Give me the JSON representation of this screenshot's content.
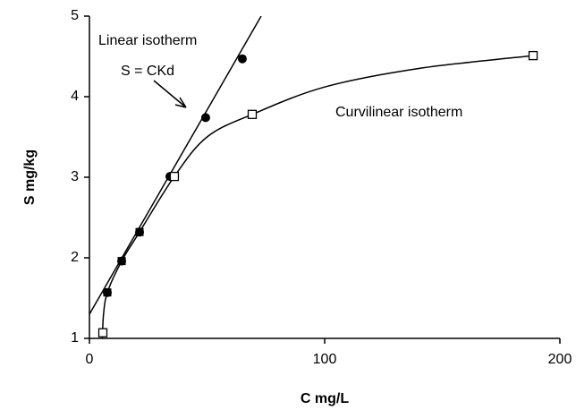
{
  "chart_data": {
    "type": "scatter",
    "xlabel": "C mg/L",
    "ylabel": "S mg/kg",
    "xlim": [
      0,
      200
    ],
    "ylim": [
      1,
      5
    ],
    "xticks": [
      0,
      100,
      200
    ],
    "yticks": [
      1,
      2,
      3,
      4,
      5
    ],
    "grid": false,
    "annotations": [
      "Linear isotherm",
      "S = CKd",
      "Curvilinear isotherm"
    ],
    "series": [
      {
        "draw": "line",
        "color": "#000000",
        "x": [
          0,
          73
        ],
        "values": [
          1.3,
          5
        ]
      },
      {
        "draw": "smooth",
        "color": "#000000",
        "x": [
          5.5,
          6,
          7.6,
          13.7,
          21.3,
          36.1,
          50,
          69.2,
          100,
          140,
          188.6
        ],
        "values": [
          1.0,
          1.3,
          1.57,
          1.96,
          2.32,
          3.01,
          3.5,
          3.78,
          4.12,
          4.35,
          4.51
        ]
      },
      {
        "draw": "circle",
        "color": "#000000",
        "x": [
          7.6,
          13.7,
          21.3,
          34.2,
          49.4,
          65
        ],
        "values": [
          1.57,
          1.96,
          2.32,
          3.01,
          3.74,
          4.47
        ]
      },
      {
        "draw": "filled-square",
        "color": "#000000",
        "x": [
          7.6,
          13.7,
          21.3
        ],
        "values": [
          1.57,
          1.96,
          2.32
        ]
      },
      {
        "draw": "open-square",
        "color": "#000000",
        "x": [
          5.7,
          36.1,
          69.2,
          188.6
        ],
        "values": [
          1.07,
          3.01,
          3.78,
          4.51
        ]
      }
    ]
  }
}
